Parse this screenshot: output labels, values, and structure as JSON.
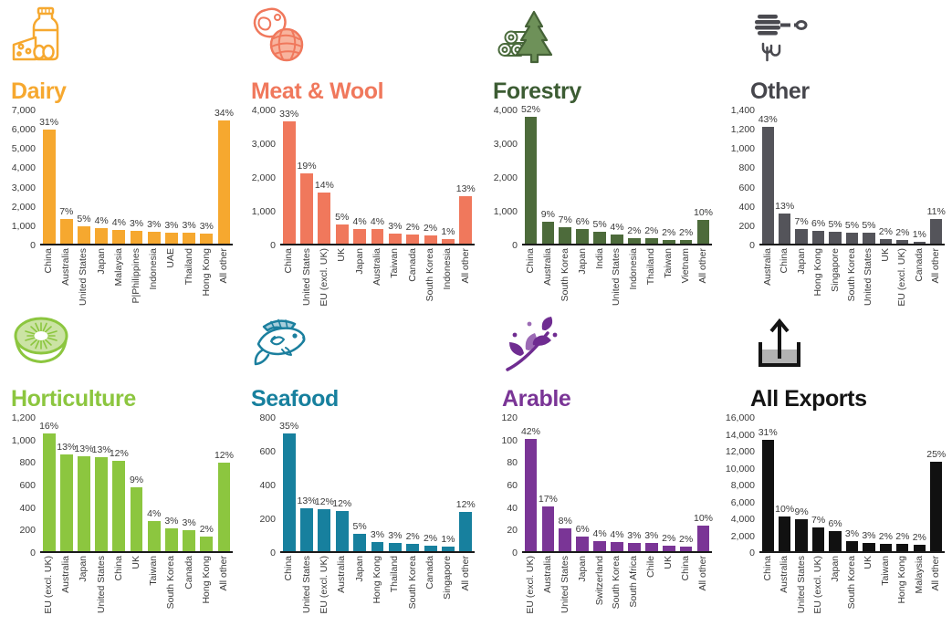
{
  "chart_data": [
    {
      "type": "bar",
      "title": "Dairy",
      "icon": "dairy-icon",
      "bar_color": "#F6A82F",
      "title_color": "#F6A82F",
      "categories": [
        "China",
        "Australia",
        "United States",
        "Japan",
        "Malaysia",
        "P|Philippines",
        "Indonesia",
        "UAE",
        "Thailand",
        "Hong Kong",
        "All other"
      ],
      "values": [
        5900,
        1300,
        900,
        800,
        730,
        650,
        620,
        590,
        560,
        530,
        6400
      ],
      "pct_labels": [
        "31%",
        "7%",
        "5%",
        "4%",
        "4%",
        "3%",
        "3%",
        "3%",
        "3%",
        "3%",
        "34%"
      ],
      "ylim": [
        0,
        7000
      ],
      "yticks": [
        "0",
        "1,000",
        "2,000",
        "3,000",
        "4,000",
        "5,000",
        "6,000",
        "7,000"
      ],
      "ytick_values": [
        0,
        1000,
        2000,
        3000,
        4000,
        5000,
        6000,
        7000
      ]
    },
    {
      "type": "bar",
      "title": "Meat & Wool",
      "icon": "meat-wool-icon",
      "bar_color": "#F0785C",
      "title_color": "#F0785C",
      "categories": [
        "China",
        "United States",
        "EU (excl. UK)",
        "UK",
        "Japan",
        "Australia",
        "Taiwan",
        "Canada",
        "South Korea",
        "Indonesia",
        "All other"
      ],
      "values": [
        3620,
        2080,
        1510,
        560,
        430,
        420,
        310,
        270,
        250,
        140,
        1400
      ],
      "pct_labels": [
        "33%",
        "19%",
        "14%",
        "5%",
        "4%",
        "4%",
        "3%",
        "2%",
        "2%",
        "1%",
        "13%"
      ],
      "ylim": [
        0,
        4000
      ],
      "yticks": [
        "0",
        "1,000",
        "2,000",
        "3,000",
        "4,000"
      ],
      "ytick_values": [
        0,
        1000,
        2000,
        3000,
        4000
      ]
    },
    {
      "type": "bar",
      "title": "Forestry",
      "icon": "forestry-icon",
      "bar_color": "#4D6B3B",
      "title_color": "#3C5C33",
      "categories": [
        "China",
        "Australia",
        "South Korea",
        "Japan",
        "India",
        "United States",
        "Indonesia",
        "Thailand",
        "Taiwan",
        "Vietnam",
        "All other"
      ],
      "values": [
        3760,
        660,
        500,
        440,
        360,
        280,
        170,
        150,
        120,
        115,
        700
      ],
      "pct_labels": [
        "52%",
        "9%",
        "7%",
        "6%",
        "5%",
        "4%",
        "2%",
        "2%",
        "2%",
        "2%",
        "10%"
      ],
      "ylim": [
        0,
        4000
      ],
      "yticks": [
        "0",
        "1,000",
        "2,000",
        "3,000",
        "4,000"
      ],
      "ytick_values": [
        0,
        1000,
        2000,
        3000,
        4000
      ]
    },
    {
      "type": "bar",
      "title": "Other",
      "icon": "honey-dipper-icon",
      "bar_color": "#54545A",
      "title_color": "#46464C",
      "categories": [
        "Australia",
        "China",
        "Japan",
        "Hong Kong",
        "Singapore",
        "South Korea",
        "United States",
        "UK",
        "EU (excl. UK)",
        "Canada",
        "All other"
      ],
      "values": [
        1210,
        310,
        150,
        130,
        120,
        115,
        110,
        45,
        35,
        20,
        260
      ],
      "pct_labels": [
        "43%",
        "13%",
        "7%",
        "6%",
        "5%",
        "5%",
        "5%",
        "2%",
        "2%",
        "1%",
        "11%"
      ],
      "ylim": [
        0,
        1400
      ],
      "yticks": [
        "0",
        "200",
        "400",
        "600",
        "800",
        "1,000",
        "1,200",
        "1,400"
      ],
      "ytick_values": [
        0,
        200,
        400,
        600,
        800,
        1000,
        1200,
        1400
      ]
    },
    {
      "type": "bar",
      "title": "Horticulture",
      "icon": "kiwifruit-icon",
      "bar_color": "#8CC63F",
      "title_color": "#8CC63F",
      "categories": [
        "EU (excl. UK)",
        "Australia",
        "Japan",
        "United States",
        "China",
        "UK",
        "Taiwan",
        "South Korea",
        "Canada",
        "Hong Kong",
        "All other"
      ],
      "values": [
        1050,
        860,
        845,
        835,
        800,
        570,
        270,
        200,
        185,
        130,
        790
      ],
      "pct_labels": [
        "16%",
        "13%",
        "13%",
        "13%",
        "12%",
        "9%",
        "4%",
        "3%",
        "3%",
        "2%",
        "12%"
      ],
      "ylim": [
        0,
        1200
      ],
      "yticks": [
        "0",
        "200",
        "400",
        "600",
        "800",
        "1,000",
        "1,200"
      ],
      "ytick_values": [
        0,
        200,
        400,
        600,
        800,
        1000,
        1200
      ]
    },
    {
      "type": "bar",
      "title": "Seafood",
      "icon": "fish-icon",
      "bar_color": "#17809E",
      "title_color": "#17809E",
      "categories": [
        "China",
        "United States",
        "EU (excl. UK)",
        "Australia",
        "Japan",
        "Hong Kong",
        "Thailand",
        "South Korea",
        "Canada",
        "Singapore",
        "All other"
      ],
      "values": [
        700,
        255,
        250,
        240,
        105,
        55,
        50,
        45,
        35,
        25,
        230
      ],
      "pct_labels": [
        "35%",
        "13%",
        "12%",
        "12%",
        "5%",
        "3%",
        "3%",
        "2%",
        "2%",
        "1%",
        "12%"
      ],
      "ylim": [
        0,
        800
      ],
      "yticks": [
        "0",
        "200",
        "400",
        "600",
        "800"
      ],
      "ytick_values": [
        0,
        200,
        400,
        600,
        800
      ]
    },
    {
      "type": "bar",
      "title": "Arable",
      "icon": "leaves-icon",
      "bar_color": "#7A3596",
      "title_color": "#7A3596",
      "categories": [
        "EU (excl. UK)",
        "Australia",
        "United States",
        "Japan",
        "Switzerland",
        "South Korea",
        "South Africa",
        "Chile",
        "UK",
        "China",
        "All other"
      ],
      "values": [
        100,
        40,
        20,
        13,
        9,
        8,
        7,
        7,
        5,
        4,
        23
      ],
      "pct_labels": [
        "42%",
        "17%",
        "8%",
        "6%",
        "4%",
        "4%",
        "3%",
        "3%",
        "2%",
        "2%",
        "10%"
      ],
      "ylim": [
        0,
        120
      ],
      "yticks": [
        "0",
        "20",
        "40",
        "60",
        "80",
        "100",
        "120"
      ],
      "ytick_values": [
        0,
        20,
        40,
        60,
        80,
        100,
        120
      ]
    },
    {
      "type": "bar",
      "title": "All Exports",
      "icon": "export-container-icon",
      "bar_color": "#111111",
      "title_color": "#141414",
      "categories": [
        "China",
        "Australia",
        "United States",
        "EU (excl. UK)",
        "Japan",
        "South Korea",
        "UK",
        "Taiwan",
        "Hong Kong",
        "Malaysia",
        "All other"
      ],
      "values": [
        13200,
        4100,
        3800,
        2800,
        2400,
        1200,
        1000,
        900,
        850,
        800,
        10600
      ],
      "pct_labels": [
        "31%",
        "10%",
        "9%",
        "7%",
        "6%",
        "3%",
        "3%",
        "2%",
        "2%",
        "2%",
        "25%"
      ],
      "ylim": [
        0,
        16000
      ],
      "yticks": [
        "0",
        "2,000",
        "4,000",
        "6,000",
        "8,000",
        "10,000",
        "12,000",
        "14,000",
        "16,000"
      ],
      "ytick_values": [
        0,
        2000,
        4000,
        6000,
        8000,
        10000,
        12000,
        14000,
        16000
      ]
    }
  ]
}
